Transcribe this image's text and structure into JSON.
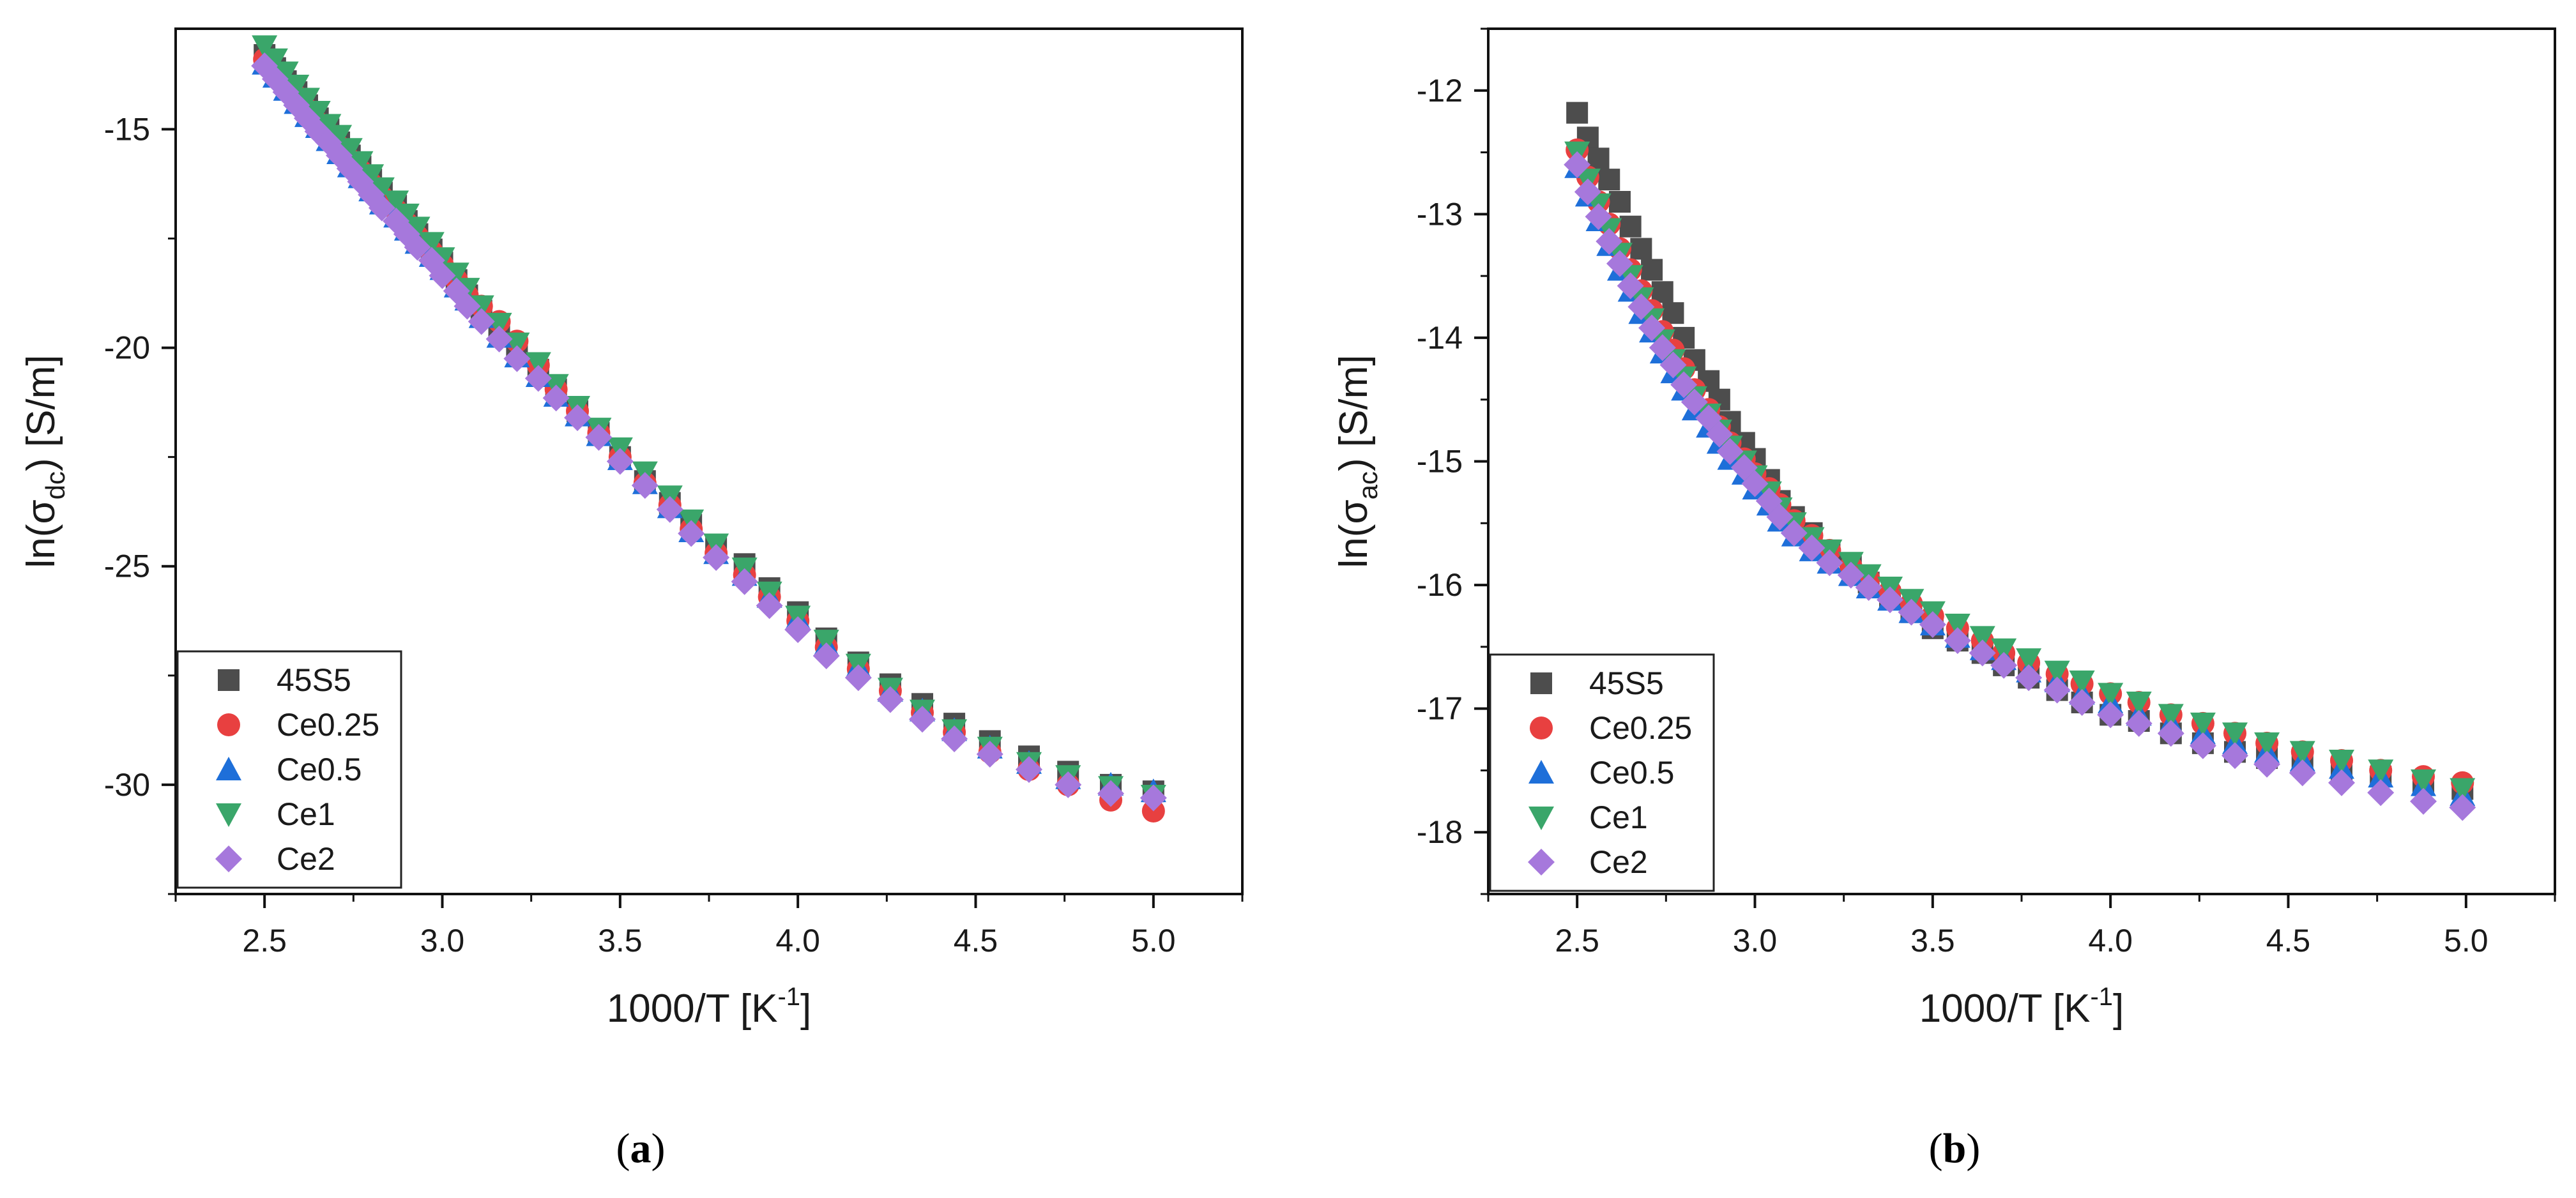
{
  "figure_caption_labels": [
    "a",
    "b"
  ],
  "chart_data": [
    {
      "type": "scatter",
      "panel": "a",
      "xlabel": "1000/T [K",
      "xlabel_sup": "-1",
      "xlabel_suffix": "]",
      "ylabel_prefix": "ln(σ",
      "ylabel_sub": "dc",
      "ylabel_suffix": ") [S/m]",
      "xlim": [
        2.25,
        5.25
      ],
      "ylim": [
        -32.5,
        -12.7
      ],
      "xticks": [
        2.5,
        3.0,
        3.5,
        4.0,
        4.5,
        5.0
      ],
      "xtick_labels": [
        "2.5",
        "3.0",
        "3.5",
        "4.0",
        "4.5",
        "5.0"
      ],
      "yticks": [
        -15,
        -20,
        -25,
        -30
      ],
      "ytick_labels": [
        "-15",
        "-20",
        "-25",
        "-30"
      ],
      "legend_position": "bottom-left",
      "series": [
        {
          "name": "45S5",
          "marker": "square",
          "color": "#4d4d4d",
          "x": [
            2.5,
            2.53,
            2.56,
            2.59,
            2.62,
            2.65,
            2.68,
            2.71,
            2.74,
            2.77,
            2.8,
            2.83,
            2.87,
            2.9,
            2.93,
            2.97,
            3.0,
            3.04,
            3.07,
            3.11,
            3.16,
            3.21,
            3.27,
            3.32,
            3.38,
            3.44,
            3.5,
            3.57,
            3.64,
            3.7,
            3.77,
            3.85,
            3.92,
            4.0,
            4.08,
            4.17,
            4.26,
            4.35,
            4.44,
            4.54,
            4.65,
            4.76,
            4.88,
            5.0
          ],
          "y": [
            -13.3,
            -13.6,
            -13.9,
            -14.15,
            -14.45,
            -14.75,
            -15.0,
            -15.3,
            -15.6,
            -15.85,
            -16.15,
            -16.45,
            -16.75,
            -17.1,
            -17.4,
            -17.75,
            -18.05,
            -18.45,
            -18.8,
            -19.15,
            -19.6,
            -20.0,
            -20.5,
            -20.95,
            -21.45,
            -21.95,
            -22.5,
            -23.05,
            -23.55,
            -24.05,
            -24.5,
            -24.95,
            -25.5,
            -26.05,
            -26.65,
            -27.2,
            -27.7,
            -28.15,
            -28.6,
            -29.0,
            -29.35,
            -29.7,
            -30.0,
            -30.15
          ]
        },
        {
          "name": "Ce0.25",
          "marker": "circle",
          "color": "#e84040",
          "x": [
            2.5,
            2.53,
            2.56,
            2.59,
            2.62,
            2.65,
            2.68,
            2.71,
            2.74,
            2.77,
            2.8,
            2.83,
            2.87,
            2.9,
            2.93,
            2.97,
            3.0,
            3.04,
            3.07,
            3.11,
            3.16,
            3.21,
            3.27,
            3.32,
            3.38,
            3.44,
            3.5,
            3.57,
            3.64,
            3.7,
            3.77,
            3.85,
            3.92,
            4.0,
            4.08,
            4.17,
            4.26,
            4.35,
            4.44,
            4.54,
            4.65,
            4.76,
            4.88,
            5.0
          ],
          "y": [
            -13.4,
            -13.7,
            -14.0,
            -14.25,
            -14.55,
            -14.85,
            -15.1,
            -15.4,
            -15.7,
            -15.95,
            -16.25,
            -16.55,
            -16.85,
            -17.15,
            -17.45,
            -17.8,
            -18.1,
            -18.45,
            -18.8,
            -19.05,
            -19.4,
            -19.85,
            -20.4,
            -20.95,
            -21.45,
            -21.95,
            -22.5,
            -23.1,
            -23.6,
            -24.15,
            -24.7,
            -25.2,
            -25.7,
            -26.25,
            -26.85,
            -27.35,
            -27.85,
            -28.35,
            -28.8,
            -29.25,
            -29.65,
            -30.0,
            -30.35,
            -30.6
          ]
        },
        {
          "name": "Ce0.5",
          "marker": "triangle-up",
          "color": "#1e6fd9",
          "x": [
            2.5,
            2.53,
            2.56,
            2.59,
            2.62,
            2.65,
            2.68,
            2.71,
            2.74,
            2.77,
            2.8,
            2.83,
            2.87,
            2.9,
            2.93,
            2.97,
            3.0,
            3.04,
            3.07,
            3.11,
            3.16,
            3.21,
            3.27,
            3.32,
            3.38,
            3.44,
            3.5,
            3.57,
            3.64,
            3.7,
            3.77,
            3.85,
            3.92,
            4.0,
            4.08,
            4.17,
            4.26,
            4.35,
            4.44,
            4.54,
            4.65,
            4.76,
            4.88,
            5.0
          ],
          "y": [
            -13.5,
            -13.8,
            -14.1,
            -14.4,
            -14.7,
            -14.95,
            -15.25,
            -15.55,
            -15.85,
            -16.1,
            -16.4,
            -16.7,
            -17.0,
            -17.3,
            -17.6,
            -17.9,
            -18.2,
            -18.6,
            -18.9,
            -19.3,
            -19.75,
            -20.2,
            -20.65,
            -21.1,
            -21.55,
            -22.0,
            -22.55,
            -23.1,
            -23.65,
            -24.2,
            -24.7,
            -25.2,
            -25.7,
            -26.2,
            -26.8,
            -27.3,
            -27.85,
            -28.3,
            -28.75,
            -29.15,
            -29.5,
            -29.85,
            -30.0,
            -30.15
          ]
        },
        {
          "name": "Ce1",
          "marker": "triangle-down",
          "color": "#3aa66a",
          "x": [
            2.5,
            2.53,
            2.56,
            2.59,
            2.62,
            2.65,
            2.68,
            2.71,
            2.74,
            2.77,
            2.8,
            2.83,
            2.87,
            2.9,
            2.93,
            2.97,
            3.0,
            3.04,
            3.07,
            3.11,
            3.16,
            3.21,
            3.27,
            3.32,
            3.38,
            3.44,
            3.5,
            3.57,
            3.64,
            3.7,
            3.77,
            3.85,
            3.92,
            4.0,
            4.08,
            4.17,
            4.26,
            4.35,
            4.44,
            4.54,
            4.65,
            4.76,
            4.88,
            5.0
          ],
          "y": [
            -13.1,
            -13.4,
            -13.7,
            -14.0,
            -14.3,
            -14.6,
            -14.9,
            -15.15,
            -15.45,
            -15.75,
            -16.05,
            -16.35,
            -16.65,
            -16.95,
            -17.25,
            -17.6,
            -17.95,
            -18.3,
            -18.65,
            -19.05,
            -19.45,
            -19.9,
            -20.35,
            -20.85,
            -21.35,
            -21.85,
            -22.3,
            -22.85,
            -23.4,
            -23.95,
            -24.5,
            -25.05,
            -25.6,
            -26.15,
            -26.7,
            -27.25,
            -27.8,
            -28.3,
            -28.75,
            -29.15,
            -29.5,
            -29.8,
            -30.05,
            -30.25
          ]
        },
        {
          "name": "Ce2",
          "marker": "diamond",
          "color": "#a678dc",
          "x": [
            2.5,
            2.53,
            2.56,
            2.59,
            2.62,
            2.65,
            2.68,
            2.71,
            2.74,
            2.77,
            2.8,
            2.83,
            2.87,
            2.9,
            2.93,
            2.97,
            3.0,
            3.04,
            3.07,
            3.11,
            3.16,
            3.21,
            3.27,
            3.32,
            3.38,
            3.44,
            3.5,
            3.57,
            3.64,
            3.7,
            3.77,
            3.85,
            3.92,
            4.0,
            4.08,
            4.17,
            4.26,
            4.35,
            4.44,
            4.54,
            4.65,
            4.76,
            4.88,
            5.0
          ],
          "y": [
            -13.55,
            -13.85,
            -14.15,
            -14.45,
            -14.75,
            -15.05,
            -15.3,
            -15.6,
            -15.9,
            -16.2,
            -16.5,
            -16.8,
            -17.1,
            -17.4,
            -17.7,
            -18.0,
            -18.35,
            -18.7,
            -19.05,
            -19.4,
            -19.8,
            -20.25,
            -20.7,
            -21.15,
            -21.6,
            -22.05,
            -22.6,
            -23.15,
            -23.7,
            -24.25,
            -24.8,
            -25.35,
            -25.9,
            -26.45,
            -27.05,
            -27.55,
            -28.05,
            -28.5,
            -28.95,
            -29.3,
            -29.65,
            -30.0,
            -30.2,
            -30.3
          ]
        }
      ]
    },
    {
      "type": "scatter",
      "panel": "b",
      "xlabel": "1000/T [K",
      "xlabel_sup": "-1",
      "xlabel_suffix": "]",
      "ylabel_prefix": "ln(σ",
      "ylabel_sub": "ac",
      "ylabel_suffix": ") [S/m]",
      "xlim": [
        2.25,
        5.25
      ],
      "ylim": [
        -18.5,
        -11.5
      ],
      "xticks": [
        2.5,
        3.0,
        3.5,
        4.0,
        4.5,
        5.0
      ],
      "xtick_labels": [
        "2.5",
        "3.0",
        "3.5",
        "4.0",
        "4.5",
        "5.0"
      ],
      "yticks": [
        -12,
        -13,
        -14,
        -15,
        -16,
        -17,
        -18
      ],
      "ytick_labels": [
        "-12",
        "-13",
        "-14",
        "-15",
        "-16",
        "-17",
        "-18"
      ],
      "legend_position": "bottom-left",
      "series": [
        {
          "name": "45S5",
          "marker": "square",
          "color": "#4d4d4d",
          "x": [
            2.5,
            2.53,
            2.56,
            2.59,
            2.62,
            2.65,
            2.68,
            2.71,
            2.74,
            2.77,
            2.8,
            2.83,
            2.87,
            2.9,
            2.93,
            2.97,
            3.0,
            3.04,
            3.07,
            3.11,
            3.16,
            3.21,
            3.27,
            3.32,
            3.38,
            3.44,
            3.5,
            3.57,
            3.64,
            3.7,
            3.77,
            3.85,
            3.92,
            4.0,
            4.08,
            4.17,
            4.26,
            4.35,
            4.44,
            4.54,
            4.65,
            4.76,
            4.88,
            4.99
          ],
          "y": [
            -12.18,
            -12.38,
            -12.55,
            -12.72,
            -12.9,
            -13.1,
            -13.28,
            -13.45,
            -13.63,
            -13.8,
            -14.0,
            -14.18,
            -14.35,
            -14.5,
            -14.68,
            -14.85,
            -14.98,
            -15.15,
            -15.32,
            -15.45,
            -15.58,
            -15.72,
            -15.85,
            -15.98,
            -16.1,
            -16.22,
            -16.35,
            -16.45,
            -16.55,
            -16.65,
            -16.75,
            -16.85,
            -16.95,
            -17.05,
            -17.1,
            -17.2,
            -17.28,
            -17.35,
            -17.4,
            -17.45,
            -17.5,
            -17.55,
            -17.6,
            -17.65
          ]
        },
        {
          "name": "Ce0.25",
          "marker": "circle",
          "color": "#e84040",
          "x": [
            2.5,
            2.53,
            2.56,
            2.59,
            2.62,
            2.65,
            2.68,
            2.71,
            2.74,
            2.77,
            2.8,
            2.83,
            2.87,
            2.9,
            2.93,
            2.97,
            3.0,
            3.04,
            3.07,
            3.11,
            3.16,
            3.21,
            3.27,
            3.32,
            3.38,
            3.44,
            3.5,
            3.57,
            3.64,
            3.7,
            3.77,
            3.85,
            3.92,
            4.0,
            4.08,
            4.17,
            4.26,
            4.35,
            4.44,
            4.54,
            4.65,
            4.76,
            4.88,
            4.99
          ],
          "y": [
            -12.48,
            -12.7,
            -12.9,
            -13.08,
            -13.28,
            -13.45,
            -13.62,
            -13.78,
            -13.95,
            -14.1,
            -14.25,
            -14.42,
            -14.58,
            -14.72,
            -14.85,
            -14.98,
            -15.1,
            -15.22,
            -15.35,
            -15.48,
            -15.6,
            -15.72,
            -15.85,
            -15.95,
            -16.05,
            -16.15,
            -16.25,
            -16.35,
            -16.45,
            -16.55,
            -16.63,
            -16.72,
            -16.8,
            -16.88,
            -16.95,
            -17.05,
            -17.12,
            -17.2,
            -17.28,
            -17.35,
            -17.42,
            -17.5,
            -17.55,
            -17.6
          ]
        },
        {
          "name": "Ce0.5",
          "marker": "triangle-up",
          "color": "#1e6fd9",
          "x": [
            2.5,
            2.53,
            2.56,
            2.59,
            2.62,
            2.65,
            2.68,
            2.71,
            2.74,
            2.77,
            2.8,
            2.83,
            2.87,
            2.9,
            2.93,
            2.97,
            3.0,
            3.04,
            3.07,
            3.11,
            3.16,
            3.21,
            3.27,
            3.32,
            3.38,
            3.44,
            3.5,
            3.57,
            3.64,
            3.7,
            3.77,
            3.85,
            3.92,
            4.0,
            4.08,
            4.17,
            4.26,
            4.35,
            4.44,
            4.54,
            4.65,
            4.76,
            4.88,
            4.99
          ],
          "y": [
            -12.62,
            -12.85,
            -13.05,
            -13.25,
            -13.45,
            -13.62,
            -13.8,
            -13.95,
            -14.12,
            -14.28,
            -14.42,
            -14.58,
            -14.72,
            -14.85,
            -14.98,
            -15.1,
            -15.22,
            -15.35,
            -15.48,
            -15.6,
            -15.72,
            -15.82,
            -15.92,
            -16.02,
            -16.12,
            -16.22,
            -16.32,
            -16.42,
            -16.52,
            -16.6,
            -16.7,
            -16.78,
            -16.88,
            -16.95,
            -17.05,
            -17.12,
            -17.2,
            -17.28,
            -17.35,
            -17.42,
            -17.48,
            -17.55,
            -17.62,
            -17.7
          ]
        },
        {
          "name": "Ce1",
          "marker": "triangle-down",
          "color": "#3aa66a",
          "x": [
            2.5,
            2.53,
            2.56,
            2.59,
            2.62,
            2.65,
            2.68,
            2.71,
            2.74,
            2.77,
            2.8,
            2.83,
            2.87,
            2.9,
            2.93,
            2.97,
            3.0,
            3.04,
            3.07,
            3.11,
            3.16,
            3.21,
            3.27,
            3.32,
            3.38,
            3.44,
            3.5,
            3.57,
            3.64,
            3.7,
            3.77,
            3.85,
            3.92,
            4.0,
            4.08,
            4.17,
            4.26,
            4.35,
            4.44,
            4.54,
            4.65,
            4.76,
            4.88,
            4.99
          ],
          "y": [
            -12.5,
            -12.72,
            -12.92,
            -13.12,
            -13.32,
            -13.5,
            -13.68,
            -13.85,
            -14.02,
            -14.18,
            -14.32,
            -14.48,
            -14.62,
            -14.75,
            -14.88,
            -15.0,
            -15.12,
            -15.25,
            -15.38,
            -15.5,
            -15.62,
            -15.72,
            -15.82,
            -15.92,
            -16.02,
            -16.12,
            -16.22,
            -16.32,
            -16.42,
            -16.52,
            -16.6,
            -16.7,
            -16.78,
            -16.88,
            -16.95,
            -17.05,
            -17.12,
            -17.2,
            -17.28,
            -17.35,
            -17.42,
            -17.5,
            -17.58,
            -17.65
          ]
        },
        {
          "name": "Ce2",
          "marker": "diamond",
          "color": "#a678dc",
          "x": [
            2.5,
            2.53,
            2.56,
            2.59,
            2.62,
            2.65,
            2.68,
            2.71,
            2.74,
            2.77,
            2.8,
            2.83,
            2.87,
            2.9,
            2.93,
            2.97,
            3.0,
            3.04,
            3.07,
            3.11,
            3.16,
            3.21,
            3.27,
            3.32,
            3.38,
            3.44,
            3.5,
            3.57,
            3.64,
            3.7,
            3.77,
            3.85,
            3.92,
            4.0,
            4.08,
            4.17,
            4.26,
            4.35,
            4.44,
            4.54,
            4.65,
            4.76,
            4.88,
            4.99
          ],
          "y": [
            -12.6,
            -12.82,
            -13.02,
            -13.22,
            -13.4,
            -13.58,
            -13.75,
            -13.92,
            -14.08,
            -14.22,
            -14.38,
            -14.52,
            -14.65,
            -14.78,
            -14.92,
            -15.05,
            -15.18,
            -15.32,
            -15.45,
            -15.58,
            -15.7,
            -15.82,
            -15.92,
            -16.02,
            -16.12,
            -16.22,
            -16.32,
            -16.45,
            -16.55,
            -16.65,
            -16.75,
            -16.85,
            -16.95,
            -17.05,
            -17.12,
            -17.2,
            -17.3,
            -17.38,
            -17.45,
            -17.52,
            -17.6,
            -17.68,
            -17.75,
            -17.8
          ]
        }
      ]
    }
  ]
}
